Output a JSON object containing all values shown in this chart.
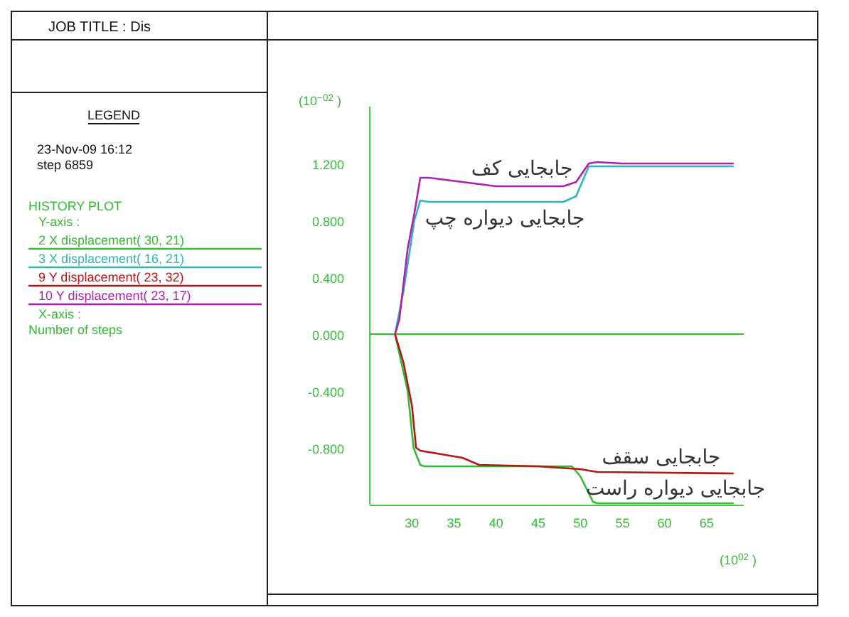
{
  "chart_data": {
    "type": "line",
    "title": "JOB TITLE : Dis",
    "legend_title": "LEGEND",
    "xlabel": "(10$^{02}$ )",
    "ylabel": "(10$^{−02}$ )",
    "annotations": [
      "23-Nov-09  16:12",
      "step     6859",
      "HISTORY PLOT",
      "Y-axis :",
      "X-axis :",
      "Number of steps",
      "جابجایی کف",
      "جابجایی دیواره چپ",
      "جابجایی سقف",
      "جابجایی دیواره راست"
    ],
    "series": [
      {
        "name": "2 X displacement( 30, 21)",
        "color": "#33bb33",
        "x": [
          28,
          29.5,
          30.2,
          31,
          31.5,
          40,
          49,
          50,
          51.5,
          52,
          68.2
        ],
        "values": [
          0,
          -0.4,
          -0.8,
          -0.92,
          -0.93,
          -0.93,
          -0.93,
          -1.0,
          -1.18,
          -1.19,
          -1.19
        ]
      },
      {
        "name": "3 X displacement( 16, 21)",
        "color": "#33b5b5",
        "x": [
          28,
          29,
          30.3,
          31,
          32,
          40,
          48,
          49.5,
          51,
          55,
          68.2
        ],
        "values": [
          0,
          0.3,
          0.8,
          0.94,
          0.93,
          0.93,
          0.93,
          0.97,
          1.18,
          1.18,
          1.18
        ]
      },
      {
        "name": "9 Y displacement( 23, 32)",
        "color": "#b01818",
        "x": [
          28,
          29,
          30,
          30.5,
          31,
          33,
          36,
          38,
          45,
          50,
          52,
          68.2
        ],
        "values": [
          0,
          -0.2,
          -0.5,
          -0.8,
          -0.82,
          -0.84,
          -0.87,
          -0.92,
          -0.93,
          -0.95,
          -0.97,
          -0.98
        ]
      },
      {
        "name": "10 Y displacement( 23, 17)",
        "color": "#b020b0",
        "x": [
          28,
          28.5,
          29.5,
          30.3,
          31,
          32,
          40,
          48,
          49.5,
          51,
          52,
          55,
          68.2
        ],
        "values": [
          0,
          0.1,
          0.6,
          0.85,
          1.1,
          1.1,
          1.04,
          1.04,
          1.07,
          1.2,
          1.21,
          1.2,
          1.2
        ]
      }
    ],
    "xlim": [
      25,
      69.4
    ],
    "ylim": [
      -1.2,
      1.6
    ],
    "xticks": [
      30,
      35,
      40,
      45,
      50,
      55,
      60,
      65
    ],
    "yticks": [
      {
        "value": 1.2,
        "label": "1.200"
      },
      {
        "value": 0.8,
        "label": "0.800"
      },
      {
        "value": 0.4,
        "label": "0.400"
      },
      {
        "value": 0,
        "label": "0.000"
      },
      {
        "value": -0.4,
        "label": "-0.400"
      },
      {
        "value": -0.8,
        "label": "-0.800"
      }
    ],
    "ref_lines": [
      {
        "axis": "y",
        "value": 0,
        "color": "#33bb33"
      }
    ],
    "legend": "left",
    "grid": false,
    "marker": "none",
    "line_style": "solid"
  }
}
